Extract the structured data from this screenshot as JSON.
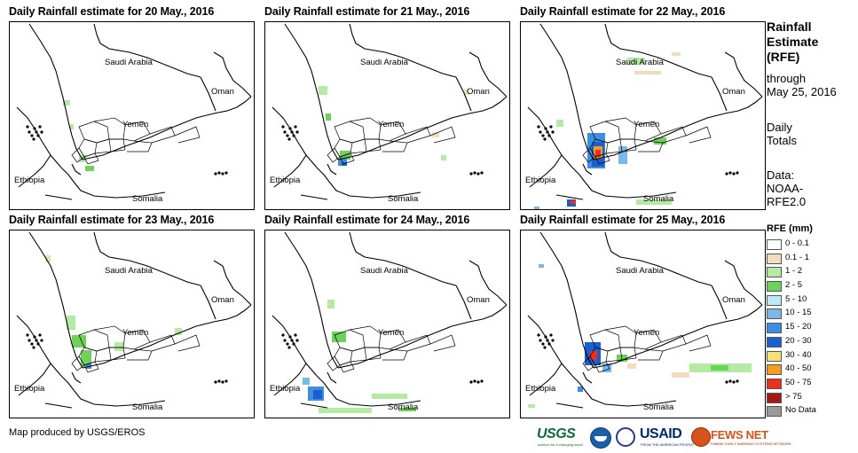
{
  "panels": [
    {
      "title": "Daily Rainfall estimate for 20 May., 2016",
      "level": 0
    },
    {
      "title": "Daily Rainfall estimate for 21 May., 2016",
      "level": 1
    },
    {
      "title": "Daily Rainfall estimate for 22 May., 2016",
      "level": 3
    },
    {
      "title": "Daily Rainfall estimate for 23 May., 2016",
      "level": 1
    },
    {
      "title": "Daily Rainfall estimate for 24 May., 2016",
      "level": 2
    },
    {
      "title": "Daily Rainfall estimate for 25 May., 2016",
      "level": 2
    }
  ],
  "country_labels": {
    "saudi": "Saudi Arabia",
    "oman": "Oman",
    "yemen": "Yemen",
    "ethiopia": "Ethiopia",
    "somalia": "Somalia"
  },
  "side": {
    "title": [
      "Rainfall",
      "Estimate",
      "(RFE)"
    ],
    "through": [
      "through",
      "May 25, 2016"
    ],
    "daily": [
      "Daily",
      "Totals"
    ],
    "data": [
      "Data:",
      "NOAA-",
      "RFE2.0"
    ]
  },
  "legend": {
    "title": "RFE (mm)",
    "items": [
      {
        "label": "0 - 0.1",
        "color": "#ffffff"
      },
      {
        "label": "0.1 - 1",
        "color": "#f2dcbf"
      },
      {
        "label": "1 - 2",
        "color": "#b5eaa4"
      },
      {
        "label": "2 - 5",
        "color": "#6ed15c"
      },
      {
        "label": "5 - 10",
        "color": "#bde8f5"
      },
      {
        "label": "10 - 15",
        "color": "#7ab8ea"
      },
      {
        "label": "15 - 20",
        "color": "#3d8ee0"
      },
      {
        "label": "20 - 30",
        "color": "#1a5fd0"
      },
      {
        "label": "30 - 40",
        "color": "#f7e07a"
      },
      {
        "label": "40 - 50",
        "color": "#f59c22"
      },
      {
        "label": "50 - 75",
        "color": "#e8301a"
      },
      {
        "label": "> 75",
        "color": "#a31a14"
      },
      {
        "label": "No Data",
        "color": "#9a9a9a"
      }
    ]
  },
  "footer": "Map produced by USGS/EROS",
  "logos": {
    "usgs": "USGS",
    "usgs_tag": "science for a changing world",
    "usaid": "USAID",
    "usaid_tag": "FROM THE AMERICAN PEOPLE",
    "fews": "FEWS NET",
    "fews_tag": "FAMINE EARLY WARNING SYSTEMS NETWORK"
  }
}
